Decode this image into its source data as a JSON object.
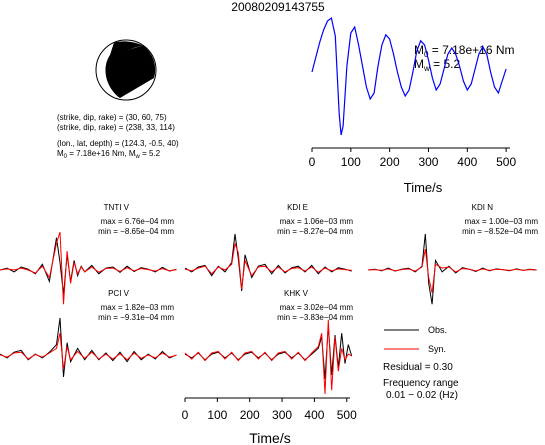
{
  "event_id": "20080209143755",
  "mechanism": {
    "line1": "(strike, dip, rake) = (30, 60, 75)",
    "line2": "(strike, dip, rake) = (238, 33, 114)",
    "line3": "(lon., lat, depth) = (124.3, -0.5, 40)",
    "line4": "M",
    "line4_sub": "0",
    "line4_rest": " = 7.18e+16 Nm, M",
    "line4_sub2": "w",
    "line4_end": " = 5.2"
  },
  "stf": {
    "m0_label": "M",
    "m0_sub": "0",
    "m0_value": " = 7.18e+16 Nm",
    "mw_label": "M",
    "mw_sub": "w",
    "mw_value": " = 5.2",
    "xlabel": "Time/s",
    "x_ticks": [
      "0",
      "100",
      "200",
      "300",
      "400",
      "500"
    ],
    "line_color": "#0000ff"
  },
  "stations": [
    {
      "name": "TNTI V",
      "max": "max = 6.76e−04 mm",
      "min": "min = −8.65e−04 mm"
    },
    {
      "name": "KDI E",
      "max": "max = 1.06e−03 mm",
      "min": "min = −8.27e−04 mm"
    },
    {
      "name": "KDI N",
      "max": "max = 1.00e−03 mm",
      "min": "min = −8.52e−04 mm"
    },
    {
      "name": "PCI V",
      "max": "max = 1.82e−03 mm",
      "min": "min = −9.31e−04 mm"
    },
    {
      "name": "KHK V",
      "max": "max = 3.02e−04 mm",
      "min": "min = −3.83e−04 mm"
    }
  ],
  "waveform_axis": {
    "xlabel": "Time/s",
    "x_ticks": [
      "0",
      "100",
      "200",
      "300",
      "400",
      "500"
    ]
  },
  "legend": {
    "obs": "Obs.",
    "syn": "Syn.",
    "obs_color": "#000000",
    "syn_color": "#ff0000",
    "residual": "Residual = 0.30",
    "freq_label": "Frequency range",
    "freq_value": "0.01 − 0.02 (Hz)"
  },
  "chart_data": [
    {
      "type": "line",
      "title": "",
      "xlabel": "Time/s",
      "ylabel": "",
      "xlim": [
        0,
        510
      ],
      "series": [
        {
          "name": "",
          "color": "#0000ff",
          "x": [
            0,
            10,
            20,
            30,
            40,
            50,
            60,
            70,
            75,
            80,
            90,
            100,
            110,
            120,
            130,
            140,
            150,
            160,
            170,
            180,
            190,
            200,
            210,
            220,
            230,
            240,
            250,
            260,
            270,
            280,
            290,
            300,
            310,
            320,
            330,
            340,
            350,
            360,
            370,
            380,
            390,
            400,
            410,
            420,
            430,
            440,
            450,
            460,
            470,
            480,
            490,
            500
          ],
          "y": [
            0.1,
            0.35,
            0.6,
            0.8,
            0.95,
            1.0,
            0.7,
            -0.6,
            -0.95,
            -0.8,
            0.2,
            0.75,
            0.85,
            0.55,
            0.2,
            -0.15,
            -0.35,
            -0.25,
            0.2,
            0.55,
            0.72,
            0.65,
            0.4,
            0.1,
            -0.15,
            -0.3,
            -0.2,
            0.1,
            0.45,
            0.62,
            0.55,
            0.3,
            0.0,
            -0.2,
            -0.1,
            0.15,
            0.4,
            0.5,
            0.4,
            0.2,
            -0.05,
            -0.2,
            -0.1,
            0.15,
            0.4,
            0.52,
            0.4,
            0.1,
            -0.15,
            -0.25,
            -0.05,
            0.15
          ]
        }
      ]
    },
    {
      "type": "line",
      "title": "TNTI V",
      "xlim": [
        0,
        510
      ],
      "series": [
        {
          "name": "Obs.",
          "color": "#000000",
          "x": [
            0,
            20,
            40,
            60,
            80,
            100,
            120,
            140,
            160,
            170,
            180,
            190,
            200,
            210,
            220,
            230,
            240,
            260,
            280,
            300,
            320,
            340,
            360,
            380,
            400,
            420,
            440,
            460,
            480,
            500
          ],
          "y": [
            0.0,
            0.05,
            -0.05,
            0.08,
            0.02,
            -0.1,
            0.15,
            -0.3,
            0.85,
            0.2,
            -0.65,
            0.4,
            -0.3,
            0.25,
            -0.15,
            0.1,
            -0.05,
            0.12,
            -0.1,
            0.05,
            0.08,
            -0.06,
            0.1,
            -0.04,
            0.06,
            0.02,
            -0.05,
            0.07,
            -0.03,
            0.02
          ]
        },
        {
          "name": "Syn.",
          "color": "#ff0000",
          "x": [
            0,
            20,
            40,
            60,
            80,
            100,
            120,
            140,
            160,
            170,
            180,
            190,
            200,
            210,
            220,
            230,
            240,
            260,
            280,
            300,
            320,
            340,
            360,
            380,
            400,
            420,
            440,
            460,
            480,
            500
          ],
          "y": [
            0.0,
            0.03,
            0.0,
            0.05,
            0.0,
            -0.08,
            0.1,
            -0.2,
            0.7,
            1.0,
            -0.9,
            0.5,
            -0.35,
            0.2,
            -0.1,
            0.08,
            -0.05,
            0.08,
            -0.06,
            0.04,
            0.05,
            -0.04,
            0.06,
            -0.02,
            0.04,
            0.01,
            -0.03,
            0.04,
            -0.02,
            0.01
          ]
        }
      ]
    },
    {
      "type": "line",
      "title": "KDI E",
      "xlim": [
        0,
        510
      ],
      "series": [
        {
          "name": "Obs.",
          "color": "#000000",
          "x": [
            0,
            20,
            40,
            60,
            80,
            100,
            120,
            140,
            150,
            160,
            170,
            180,
            200,
            220,
            240,
            260,
            280,
            300,
            320,
            340,
            360,
            380,
            400,
            420,
            440,
            460,
            480,
            500
          ],
          "y": [
            0.05,
            -0.05,
            0.08,
            0.12,
            -0.15,
            0.1,
            -0.05,
            0.2,
            0.95,
            0.3,
            -0.55,
            0.4,
            -0.2,
            0.1,
            0.15,
            -0.1,
            0.12,
            -0.08,
            0.06,
            0.1,
            -0.05,
            0.12,
            -0.1,
            0.08,
            -0.05,
            0.06,
            0.02,
            -0.03
          ]
        },
        {
          "name": "Syn.",
          "color": "#ff0000",
          "x": [
            0,
            20,
            40,
            60,
            80,
            100,
            120,
            140,
            150,
            160,
            170,
            180,
            200,
            220,
            240,
            260,
            280,
            300,
            320,
            340,
            360,
            380,
            400,
            420,
            440,
            460,
            480,
            500
          ],
          "y": [
            0.02,
            -0.02,
            0.05,
            0.1,
            -0.1,
            0.08,
            0.0,
            0.15,
            0.7,
            0.45,
            -0.5,
            0.25,
            -0.15,
            0.08,
            0.1,
            -0.05,
            0.08,
            -0.05,
            0.04,
            0.06,
            -0.03,
            0.08,
            -0.06,
            0.05,
            -0.02,
            0.03,
            0.01,
            -0.01
          ]
        }
      ]
    },
    {
      "type": "line",
      "title": "KDI N",
      "xlim": [
        0,
        510
      ],
      "series": [
        {
          "name": "Obs.",
          "color": "#000000",
          "x": [
            0,
            20,
            40,
            60,
            80,
            100,
            120,
            140,
            160,
            170,
            180,
            190,
            200,
            220,
            240,
            260,
            280,
            300,
            320,
            340,
            360,
            380,
            400,
            420,
            440,
            460,
            480,
            500
          ],
          "y": [
            0.0,
            0.02,
            -0.02,
            0.05,
            -0.03,
            0.02,
            0.05,
            -0.05,
            0.1,
            0.95,
            -0.35,
            -0.9,
            0.25,
            -0.05,
            0.1,
            -0.08,
            0.06,
            0.02,
            -0.04,
            0.05,
            -0.02,
            0.03,
            0.01,
            -0.02,
            0.03,
            -0.01,
            0.02,
            0.0
          ]
        },
        {
          "name": "Syn.",
          "color": "#ff0000",
          "x": [
            0,
            20,
            40,
            60,
            80,
            100,
            120,
            140,
            160,
            170,
            180,
            190,
            200,
            220,
            240,
            260,
            280,
            300,
            320,
            340,
            360,
            380,
            400,
            420,
            440,
            460,
            480,
            500
          ],
          "y": [
            0.0,
            0.01,
            -0.01,
            0.03,
            -0.02,
            0.01,
            0.03,
            -0.03,
            0.08,
            0.55,
            -0.2,
            -0.6,
            0.15,
            0.05,
            0.08,
            -0.05,
            0.04,
            0.02,
            -0.02,
            0.03,
            -0.01,
            0.02,
            0.01,
            -0.01,
            0.02,
            -0.01,
            0.01,
            0.0
          ]
        }
      ]
    },
    {
      "type": "line",
      "title": "PCI V",
      "xlim": [
        0,
        510
      ],
      "series": [
        {
          "name": "Obs.",
          "color": "#000000",
          "x": [
            0,
            20,
            40,
            60,
            80,
            100,
            120,
            140,
            160,
            170,
            180,
            190,
            200,
            220,
            240,
            260,
            280,
            300,
            320,
            340,
            360,
            380,
            400,
            420,
            440,
            460,
            480,
            500
          ],
          "y": [
            0.05,
            -0.05,
            0.1,
            0.15,
            -0.1,
            0.05,
            -0.05,
            0.1,
            0.3,
            1.0,
            -0.55,
            0.35,
            -0.15,
            0.2,
            -0.1,
            0.15,
            -0.1,
            0.08,
            -0.12,
            0.1,
            -0.15,
            0.12,
            -0.1,
            0.05,
            -0.08,
            0.12,
            -0.05,
            0.03
          ]
        },
        {
          "name": "Syn.",
          "color": "#ff0000",
          "x": [
            0,
            20,
            40,
            60,
            80,
            100,
            120,
            140,
            160,
            170,
            180,
            190,
            200,
            220,
            240,
            260,
            280,
            300,
            320,
            340,
            360,
            380,
            400,
            420,
            440,
            460,
            480,
            500
          ],
          "y": [
            0.03,
            -0.03,
            0.08,
            0.1,
            -0.08,
            0.04,
            -0.03,
            0.08,
            0.2,
            0.6,
            -0.35,
            0.25,
            -0.1,
            0.12,
            -0.06,
            0.1,
            -0.08,
            0.05,
            -0.08,
            0.06,
            -0.1,
            0.08,
            -0.06,
            0.03,
            -0.05,
            0.08,
            -0.03,
            0.02
          ]
        }
      ]
    },
    {
      "type": "line",
      "title": "KHK V",
      "xlim": [
        0,
        510
      ],
      "series": [
        {
          "name": "Obs.",
          "color": "#000000",
          "x": [
            0,
            20,
            40,
            60,
            80,
            100,
            120,
            140,
            160,
            180,
            200,
            220,
            240,
            260,
            280,
            300,
            320,
            340,
            360,
            380,
            400,
            410,
            420,
            430,
            440,
            450,
            460,
            470,
            480,
            490,
            500
          ],
          "y": [
            0.05,
            -0.05,
            0.08,
            -0.1,
            0.05,
            0.1,
            -0.05,
            0.08,
            -0.1,
            0.05,
            0.1,
            -0.05,
            0.08,
            -0.1,
            0.05,
            0.1,
            -0.05,
            0.08,
            -0.1,
            0.05,
            0.2,
            0.5,
            -0.6,
            0.8,
            -0.5,
            0.55,
            -0.3,
            0.6,
            -0.2,
            0.3,
            0.0
          ]
        },
        {
          "name": "Syn.",
          "color": "#ff0000",
          "x": [
            0,
            20,
            40,
            60,
            80,
            100,
            120,
            140,
            160,
            180,
            200,
            220,
            240,
            260,
            280,
            300,
            320,
            340,
            360,
            380,
            400,
            410,
            420,
            430,
            440,
            450,
            460,
            470,
            480,
            490,
            500
          ],
          "y": [
            0.08,
            -0.08,
            0.1,
            -0.12,
            0.08,
            0.12,
            -0.08,
            0.1,
            -0.12,
            0.08,
            0.12,
            -0.08,
            0.1,
            -0.12,
            0.08,
            0.12,
            -0.08,
            0.1,
            -0.12,
            0.08,
            0.25,
            0.6,
            -1.0,
            0.95,
            -0.9,
            0.5,
            -0.4,
            0.2,
            -0.1,
            0.05,
            0.0
          ]
        }
      ]
    }
  ]
}
